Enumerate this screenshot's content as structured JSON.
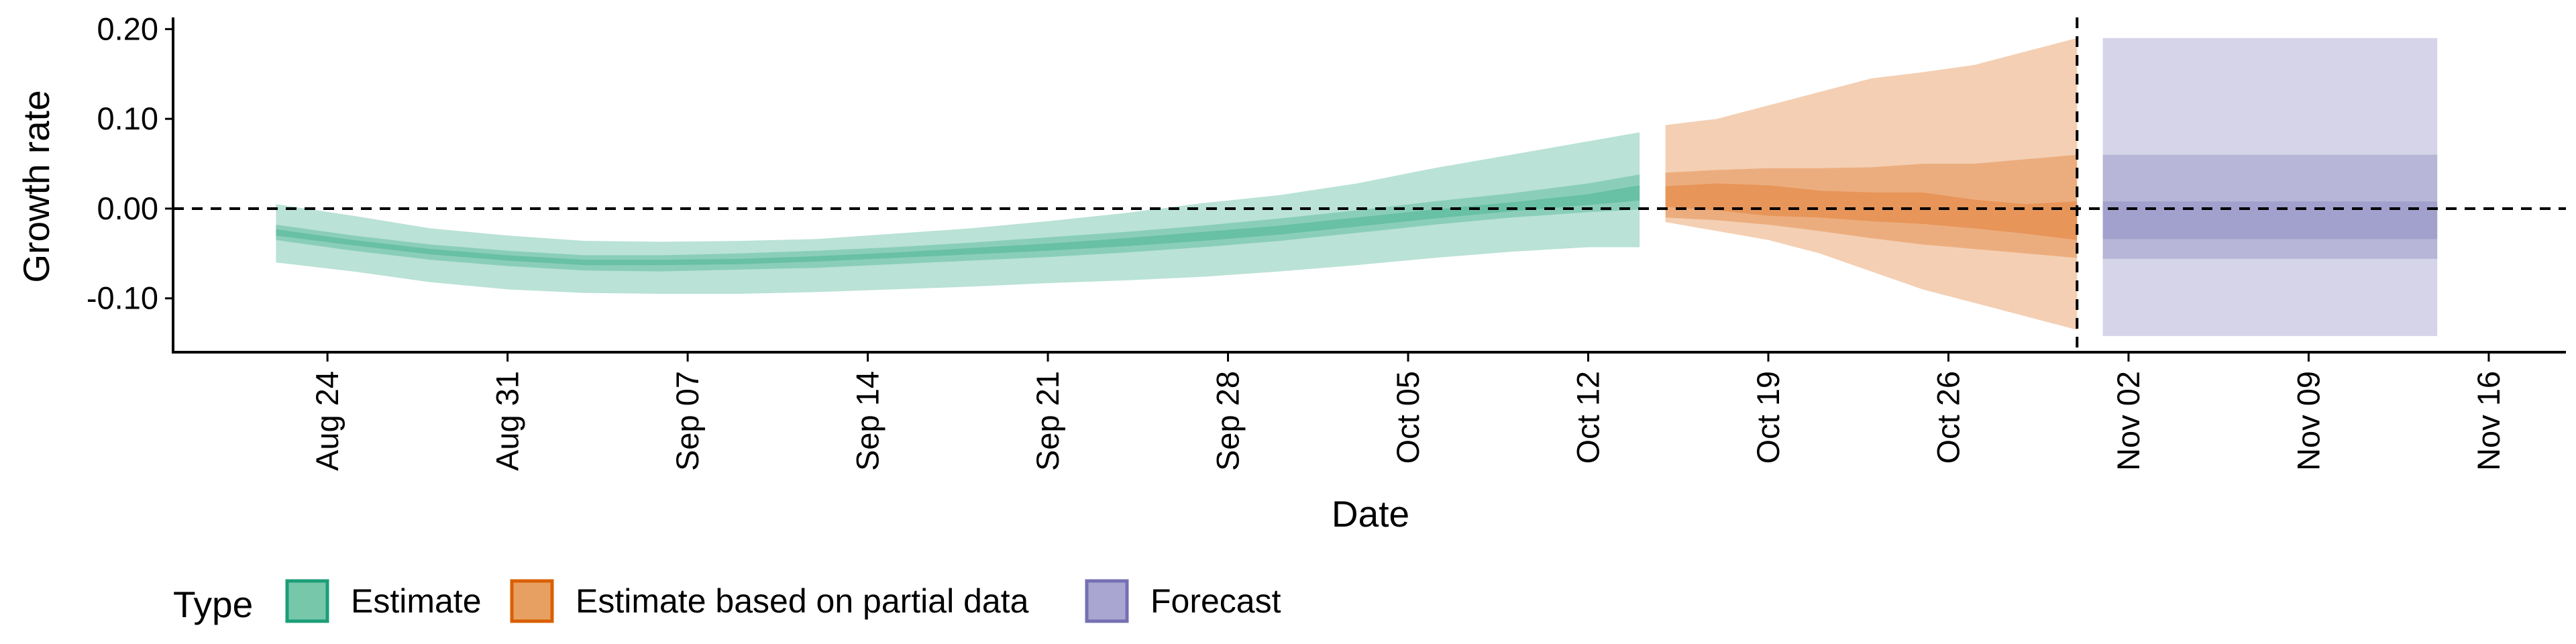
{
  "chart_data": {
    "type": "area",
    "xlabel": "Date",
    "ylabel": "Growth rate",
    "ylim": [
      -0.16,
      0.21
    ],
    "xlim": [
      "2020-08-18",
      "2020-11-19"
    ],
    "y_ticks": [
      {
        "value": 0.2,
        "label": "0.20"
      },
      {
        "value": 0.1,
        "label": "0.10"
      },
      {
        "value": 0.0,
        "label": "0.00"
      },
      {
        "value": -0.1,
        "label": "-0.10"
      }
    ],
    "x_ticks": [
      {
        "date": "2020-08-24",
        "label": "Aug 24"
      },
      {
        "date": "2020-08-31",
        "label": "Aug 31"
      },
      {
        "date": "2020-09-07",
        "label": "Sep 07"
      },
      {
        "date": "2020-09-14",
        "label": "Sep 14"
      },
      {
        "date": "2020-09-21",
        "label": "Sep 21"
      },
      {
        "date": "2020-09-28",
        "label": "Sep 28"
      },
      {
        "date": "2020-10-05",
        "label": "Oct 05"
      },
      {
        "date": "2020-10-12",
        "label": "Oct 12"
      },
      {
        "date": "2020-10-19",
        "label": "Oct 19"
      },
      {
        "date": "2020-10-26",
        "label": "Oct 26"
      },
      {
        "date": "2020-11-02",
        "label": "Nov 02"
      },
      {
        "date": "2020-11-09",
        "label": "Nov 09"
      },
      {
        "date": "2020-11-16",
        "label": "Nov 16"
      }
    ],
    "reference_lines": {
      "horizontal_y": 0.0,
      "vertical_date": "2020-10-31"
    },
    "grid": false,
    "legend": {
      "title": "Type",
      "position": "bottom-left",
      "entries": [
        {
          "label": "Estimate",
          "fill": "#77c7ab",
          "stroke": "#1b9e77"
        },
        {
          "label": "Estimate based on partial data",
          "fill": "#e8a062",
          "stroke": "#d95f02"
        },
        {
          "label": "Forecast",
          "fill": "#aaa6d2",
          "stroke": "#7570b3"
        }
      ]
    },
    "band_opacity": {
      "outer": 0.3,
      "middle": 0.3,
      "inner": 0.3
    },
    "series": [
      {
        "type": "Estimate",
        "color": "#1b9e77",
        "x": [
          "2020-08-22",
          "2020-08-25",
          "2020-08-28",
          "2020-08-31",
          "2020-09-03",
          "2020-09-06",
          "2020-09-09",
          "2020-09-12",
          "2020-09-15",
          "2020-09-18",
          "2020-09-21",
          "2020-09-24",
          "2020-09-27",
          "2020-09-30",
          "2020-10-03",
          "2020-10-06",
          "2020-10-09",
          "2020-10-12",
          "2020-10-14"
        ],
        "outer_lower": [
          -0.06,
          -0.07,
          -0.082,
          -0.09,
          -0.094,
          -0.095,
          -0.095,
          -0.093,
          -0.09,
          -0.087,
          -0.083,
          -0.08,
          -0.076,
          -0.07,
          -0.063,
          -0.055,
          -0.048,
          -0.043,
          -0.043
        ],
        "outer_upper": [
          0.005,
          -0.008,
          -0.022,
          -0.03,
          -0.036,
          -0.037,
          -0.036,
          -0.034,
          -0.028,
          -0.022,
          -0.014,
          -0.005,
          0.006,
          0.015,
          0.028,
          0.045,
          0.06,
          0.075,
          0.085
        ],
        "mid_lower": [
          -0.035,
          -0.047,
          -0.057,
          -0.064,
          -0.069,
          -0.07,
          -0.068,
          -0.066,
          -0.062,
          -0.058,
          -0.054,
          -0.049,
          -0.043,
          -0.036,
          -0.027,
          -0.018,
          -0.01,
          -0.004,
          -0.001
        ],
        "mid_upper": [
          -0.018,
          -0.03,
          -0.04,
          -0.047,
          -0.052,
          -0.052,
          -0.05,
          -0.047,
          -0.043,
          -0.038,
          -0.032,
          -0.026,
          -0.019,
          -0.011,
          -0.002,
          0.008,
          0.017,
          0.028,
          0.038
        ],
        "inner_lower": [
          -0.03,
          -0.041,
          -0.051,
          -0.058,
          -0.063,
          -0.063,
          -0.062,
          -0.059,
          -0.055,
          -0.051,
          -0.047,
          -0.042,
          -0.036,
          -0.029,
          -0.02,
          -0.011,
          -0.003,
          0.004,
          0.009
        ],
        "inner_upper": [
          -0.023,
          -0.035,
          -0.045,
          -0.052,
          -0.057,
          -0.057,
          -0.056,
          -0.053,
          -0.049,
          -0.044,
          -0.039,
          -0.033,
          -0.026,
          -0.019,
          -0.01,
          -0.001,
          0.007,
          0.016,
          0.026
        ]
      },
      {
        "type": "Estimate based on partial data",
        "color": "#d95f02",
        "x": [
          "2020-10-15",
          "2020-10-17",
          "2020-10-19",
          "2020-10-21",
          "2020-10-23",
          "2020-10-25",
          "2020-10-27",
          "2020-10-29",
          "2020-10-31"
        ],
        "outer_lower": [
          -0.015,
          -0.025,
          -0.035,
          -0.05,
          -0.07,
          -0.09,
          -0.105,
          -0.12,
          -0.135
        ],
        "outer_upper": [
          0.093,
          0.1,
          0.115,
          0.13,
          0.145,
          0.152,
          0.16,
          0.175,
          0.19
        ],
        "mid_lower": [
          -0.01,
          -0.013,
          -0.018,
          -0.025,
          -0.033,
          -0.04,
          -0.045,
          -0.05,
          -0.055
        ],
        "mid_upper": [
          0.04,
          0.043,
          0.045,
          0.045,
          0.046,
          0.05,
          0.05,
          0.055,
          0.06
        ],
        "inner_lower": [
          0.002,
          -0.002,
          -0.008,
          -0.01,
          -0.014,
          -0.017,
          -0.022,
          -0.028,
          -0.035
        ],
        "inner_upper": [
          0.025,
          0.028,
          0.026,
          0.02,
          0.018,
          0.018,
          0.01,
          0.005,
          0.008
        ]
      },
      {
        "type": "Forecast",
        "color": "#7570b3",
        "x": [
          "2020-11-01",
          "2020-11-14"
        ],
        "outer_lower": [
          -0.142,
          -0.142
        ],
        "outer_upper": [
          0.19,
          0.19
        ],
        "mid_lower": [
          -0.056,
          -0.056
        ],
        "mid_upper": [
          0.06,
          0.06
        ],
        "inner_lower": [
          -0.034,
          -0.034
        ],
        "inner_upper": [
          0.008,
          0.008
        ]
      }
    ]
  }
}
